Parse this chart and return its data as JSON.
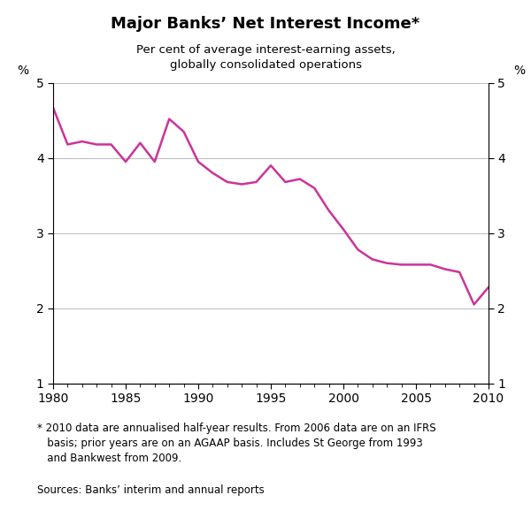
{
  "title": "Major Banks’ Net Interest Income*",
  "subtitle": "Per cent of average interest-earning assets,\nglobally consolidated operations",
  "line_color": "#CC3399",
  "line_width": 1.8,
  "background_color": "#ffffff",
  "xlim": [
    1980,
    2010
  ],
  "ylim": [
    1,
    5
  ],
  "yticks": [
    1,
    2,
    3,
    4,
    5
  ],
  "xticks": [
    1980,
    1985,
    1990,
    1995,
    2000,
    2005,
    2010
  ],
  "ylabel_left": "%",
  "ylabel_right": "%",
  "footnote_star": "* 2010 data are annualised half-year results. From 2006 data are on an IFRS\n   basis; prior years are on an AGAAP basis. Includes St George from 1993\n   and Bankwest from 2009.",
  "footnote_sources": "Sources: Banks’ interim and annual reports",
  "x_data": [
    1980,
    1981,
    1982,
    1983,
    1984,
    1985,
    1986,
    1987,
    1988,
    1989,
    1990,
    1991,
    1992,
    1993,
    1994,
    1995,
    1996,
    1997,
    1998,
    1999,
    2000,
    2001,
    2002,
    2003,
    2004,
    2005,
    2006,
    2007,
    2008,
    2009,
    2010
  ],
  "y_data": [
    4.67,
    4.18,
    4.22,
    4.18,
    4.18,
    3.95,
    4.2,
    3.95,
    4.52,
    4.35,
    3.95,
    3.8,
    3.68,
    3.65,
    3.68,
    3.9,
    3.68,
    3.72,
    3.6,
    3.3,
    3.05,
    2.78,
    2.65,
    2.6,
    2.58,
    2.58,
    2.58,
    2.52,
    2.48,
    2.05,
    2.28
  ]
}
